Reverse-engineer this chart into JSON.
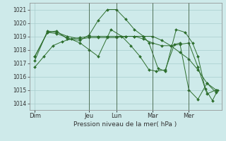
{
  "xlabel": "Pression niveau de la mer( hPa )",
  "bg_color": "#ceeaea",
  "grid_color": "#a8cccc",
  "line_color": "#2d6e2d",
  "marker_color": "#2d6e2d",
  "ylim": [
    1013.5,
    1021.5
  ],
  "yticks": [
    1014,
    1015,
    1016,
    1017,
    1018,
    1019,
    1020,
    1021
  ],
  "day_labels": [
    "Dim",
    "Jeu",
    "Lun",
    "Mar",
    "Mer"
  ],
  "day_x": [
    0,
    3,
    4.5,
    6.5,
    8.5
  ],
  "vline_x": [
    3,
    4.5,
    6.5,
    8.5
  ],
  "xlim": [
    -0.3,
    10.3
  ],
  "series": [
    {
      "x": [
        0,
        0.5,
        1.0,
        1.5,
        2.0,
        2.5,
        3.0,
        3.5,
        4.0,
        4.5,
        5.0,
        5.5,
        6.0,
        6.5,
        7.0,
        7.5,
        8.0,
        8.5,
        9.0,
        9.5,
        10.0
      ],
      "y": [
        1016.7,
        1017.5,
        1018.3,
        1018.6,
        1018.8,
        1018.9,
        1019.0,
        1019.0,
        1019.0,
        1019.0,
        1019.0,
        1019.0,
        1019.0,
        1019.0,
        1018.7,
        1018.3,
        1017.8,
        1017.3,
        1016.5,
        1015.5,
        1014.8
      ]
    },
    {
      "x": [
        0,
        0.7,
        1.2,
        1.8,
        2.5,
        3.0,
        3.5,
        4.0,
        4.5,
        5.0,
        5.5,
        6.0,
        6.3,
        6.8,
        7.2,
        7.8,
        8.3,
        8.7,
        9.0,
        9.4,
        9.8,
        10.1
      ],
      "y": [
        1017.5,
        1019.3,
        1019.4,
        1018.8,
        1018.7,
        1019.1,
        1020.2,
        1021.0,
        1021.0,
        1020.3,
        1019.5,
        1019.0,
        1018.5,
        1016.6,
        1016.4,
        1019.5,
        1019.3,
        1018.5,
        1017.5,
        1015.1,
        1014.2,
        1015.0
      ]
    },
    {
      "x": [
        0,
        0.7,
        1.2,
        1.8,
        2.5,
        3.0,
        3.5,
        4.0,
        4.5,
        5.0,
        5.5,
        6.0,
        6.5,
        7.0,
        7.5,
        8.0,
        8.5,
        9.0,
        9.5,
        10.0
      ],
      "y": [
        1017.2,
        1019.4,
        1019.3,
        1019.0,
        1018.8,
        1018.9,
        1018.9,
        1018.9,
        1018.9,
        1019.0,
        1019.0,
        1018.8,
        1018.5,
        1018.3,
        1018.3,
        1018.4,
        1018.5,
        1016.7,
        1014.7,
        1015.0
      ]
    },
    {
      "x": [
        0,
        0.7,
        1.2,
        1.8,
        2.5,
        3.0,
        3.5,
        4.2,
        4.8,
        5.3,
        5.8,
        6.3,
        6.7,
        7.2,
        7.7,
        8.0,
        8.5,
        9.0,
        9.5,
        10.0
      ],
      "y": [
        1017.5,
        1019.3,
        1019.2,
        1018.9,
        1018.5,
        1018.0,
        1017.5,
        1019.5,
        1019.0,
        1018.3,
        1017.5,
        1016.5,
        1016.4,
        1016.5,
        1018.4,
        1018.5,
        1015.0,
        1014.3,
        1015.5,
        1015.0
      ]
    }
  ]
}
